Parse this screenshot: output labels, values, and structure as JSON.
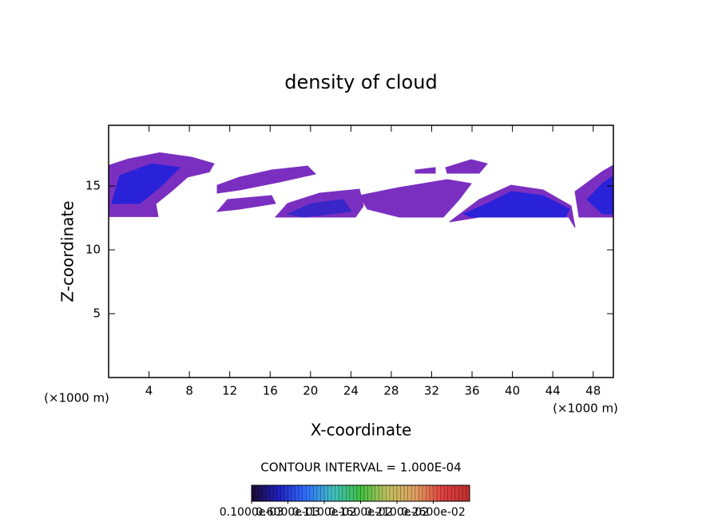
{
  "chart_data": {
    "type": "contour",
    "title": "density of cloud",
    "x_label": "X-coordinate",
    "y_label": "Z-coordinate",
    "x_unit_label": "(×1000 m)",
    "contour_interval": "CONTOUR INTERVAL = 1.000E-04",
    "xlim": [
      0,
      50
    ],
    "ylim": [
      0,
      19.75
    ],
    "xticks": [
      4,
      8,
      12,
      16,
      20,
      24,
      28,
      32,
      36,
      40,
      44,
      48
    ],
    "yticks": [
      5,
      10,
      15
    ],
    "regions": [
      {
        "color": "#7b2fc0",
        "x": [
          0,
          1.9,
          5.06,
          8.23,
          10.44,
          9.97,
          7.83,
          6.25,
          4.67,
          4.9,
          0
        ],
        "y": [
          16.6,
          17.1,
          17.6,
          17.25,
          16.75,
          16.1,
          15.7,
          14.6,
          13.6,
          12.6,
          12.6
        ]
      },
      {
        "color": "#2a22d8",
        "x": [
          1.1,
          4.27,
          7.04,
          5.06,
          3.09,
          0.32
        ],
        "y": [
          15.81,
          16.75,
          16.44,
          14.88,
          13.63,
          13.63
        ]
      },
      {
        "color": "#7b2fc0",
        "x": [
          10.76,
          12.97,
          16.14,
          19.7,
          20.49,
          16.93,
          12.97,
          10.76
        ],
        "y": [
          15.06,
          15.69,
          16.25,
          16.56,
          15.94,
          15.31,
          14.69,
          14.44
        ]
      },
      {
        "color": "#7b2fc0",
        "x": [
          10.76,
          11.79,
          16.14,
          16.53,
          12.97
        ],
        "y": [
          13,
          13.94,
          14.25,
          13.63,
          13.19
        ]
      },
      {
        "color": "#7b2fc0",
        "x": [
          16.53,
          17.72,
          20.89,
          24.84,
          25.24,
          24.45
        ],
        "y": [
          12.56,
          13.63,
          14.44,
          14.75,
          13.44,
          12.56
        ]
      },
      {
        "color": "#3a26c8",
        "x": [
          17.72,
          20.09,
          23.26,
          24.05,
          19.3
        ],
        "y": [
          12.81,
          13.63,
          13.94,
          13.0,
          12.56
        ]
      },
      {
        "color": "#7b2fc0",
        "x": [
          24.84,
          28.8,
          33.54,
          35.92,
          34.73,
          33.15,
          28.8,
          25.63
        ],
        "y": [
          14.25,
          14.88,
          15.5,
          15.19,
          13.94,
          12.56,
          12.56,
          13.19
        ]
      },
      {
        "color": "#7b2fc0",
        "x": [
          30.38,
          32.36,
          32.36,
          30.38
        ],
        "y": [
          16.25,
          16.44,
          16.0,
          16.0
        ]
      },
      {
        "color": "#7b2fc0",
        "x": [
          33.39,
          35.92,
          37.5,
          36.71,
          33.54
        ],
        "y": [
          16.44,
          17.06,
          16.75,
          16.0,
          16.0
        ]
      },
      {
        "color": "#7b2fc0",
        "x": [
          33.78,
          36.71,
          39.87,
          43.04,
          45.81,
          46.2,
          45.57,
          36.71
        ],
        "y": [
          12.19,
          13.94,
          15.06,
          14.69,
          13.44,
          11.75,
          12.56,
          12.56
        ]
      },
      {
        "color": "#2a22d8",
        "x": [
          35.13,
          37.5,
          39.87,
          43.04,
          45.65,
          45.25,
          35.92
        ],
        "y": [
          12.81,
          13.63,
          14.56,
          14.25,
          13.19,
          12.56,
          12.56
        ]
      },
      {
        "color": "#7b2fc0",
        "x": [
          50,
          48.9,
          46.2,
          46.6,
          50
        ],
        "y": [
          16.63,
          16.13,
          14.56,
          12.56,
          12.56
        ]
      },
      {
        "color": "#2a22d8",
        "x": [
          50,
          48.9,
          47.4,
          48.9,
          50
        ],
        "y": [
          15.81,
          15.19,
          13.94,
          12.81,
          12.81
        ]
      }
    ],
    "colorbar": {
      "lim": [
        0.0001,
        0.0031
      ],
      "colormap": [
        "#1a0a30",
        "#2020c0",
        "#3070ff",
        "#40c0c0",
        "#40c040",
        "#c0c060",
        "#e0a060",
        "#e04040",
        "#c03030"
      ],
      "ticks": [
        {
          "value": 0.0001,
          "label": "0.1000e-03"
        },
        {
          "value": 0.0006,
          "label": "0.6000e-03"
        },
        {
          "value": 0.0011,
          "label": "0.1100e-02"
        },
        {
          "value": 0.0016,
          "label": "0.1600e-02"
        },
        {
          "value": 0.0021,
          "label": "0.2100e-02"
        },
        {
          "value": 0.0026,
          "label": "0.2600e-02"
        }
      ]
    }
  }
}
